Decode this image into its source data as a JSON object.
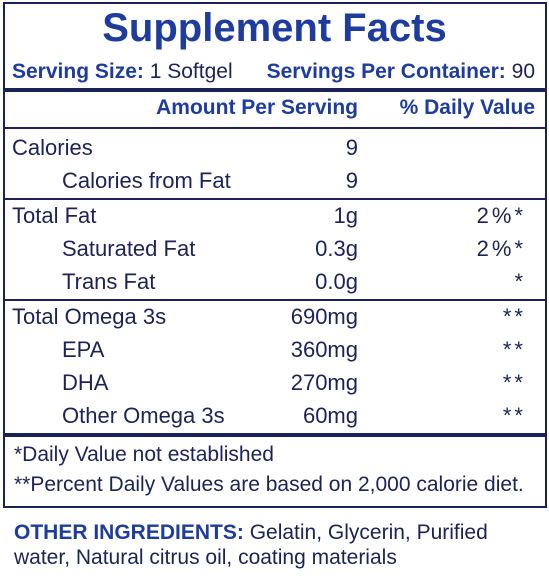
{
  "title": "Supplement Facts",
  "serving_size": {
    "label": "Serving Size:",
    "value": "1 Softgel"
  },
  "servings_per_container": {
    "label": "Servings Per Container:",
    "value": "90"
  },
  "header": {
    "amount": "Amount Per Serving",
    "daily_value": "% Daily Value"
  },
  "sections": [
    {
      "rows": [
        {
          "label": "Calories",
          "amount": "9",
          "children": [
            {
              "label": "Calories from Fat",
              "amount": "9"
            }
          ]
        }
      ]
    },
    {
      "rows": [
        {
          "label": "Total Fat",
          "amount": "1g",
          "daily_value": "2%*",
          "children": [
            {
              "label": "Saturated Fat",
              "amount": "0.3g",
              "daily_value": "2%*"
            },
            {
              "label": "Trans Fat",
              "amount": "0.0g",
              "daily_value": "*"
            }
          ]
        }
      ]
    },
    {
      "rows": [
        {
          "label": "Total Omega 3s",
          "amount": "690mg",
          "daily_value": "**",
          "children": [
            {
              "label": "EPA",
              "amount": "360mg",
              "daily_value": "**"
            },
            {
              "label": "DHA",
              "amount": "270mg",
              "daily_value": "**"
            },
            {
              "label": "Other Omega 3s",
              "amount": "60mg",
              "daily_value": "**"
            }
          ]
        }
      ]
    }
  ],
  "footnotes": [
    "*Daily Value not established",
    "**Percent Daily Values are based on 2,000 calorie diet."
  ],
  "other_ingredients": {
    "label": "OTHER INGREDIENTS:",
    "text": "Gelatin, Glycerin, Purified water, Natural citrus oil, coating materials"
  }
}
